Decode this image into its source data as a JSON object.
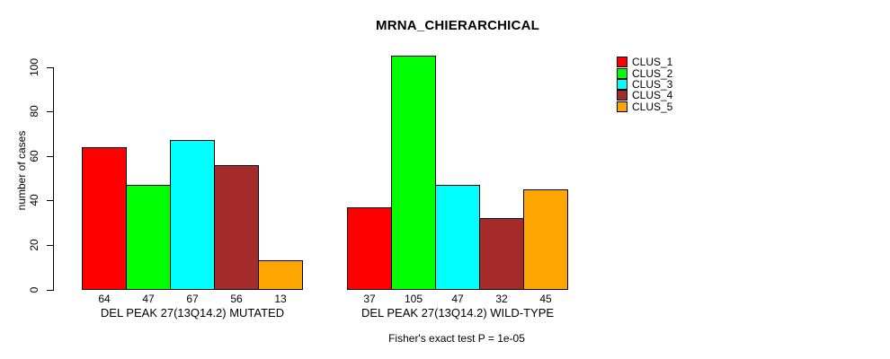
{
  "chart_data": {
    "type": "bar",
    "title": "MRNA_CHIERARCHICAL",
    "xlabel": "",
    "ylabel": "number of cases",
    "ylim": [
      0,
      100
    ],
    "yticks": [
      0,
      20,
      40,
      60,
      80,
      100
    ],
    "grid": false,
    "legend_position": "top-right",
    "bar_value_labels": true,
    "categories": [
      "DEL PEAK 27(13Q14.2) MUTATED",
      "DEL PEAK 27(13Q14.2) WILD-TYPE"
    ],
    "series": [
      {
        "name": "CLUS_1",
        "color": "#FF0000",
        "values": [
          64,
          37
        ]
      },
      {
        "name": "CLUS_2",
        "color": "#00FF00",
        "values": [
          47,
          105
        ]
      },
      {
        "name": "CLUS_3",
        "color": "#00FFFF",
        "values": [
          67,
          47
        ]
      },
      {
        "name": "CLUS_4",
        "color": "#A52A2A",
        "values": [
          56,
          32
        ]
      },
      {
        "name": "CLUS_5",
        "color": "#FFA500",
        "values": [
          13,
          45
        ]
      }
    ],
    "footnote": "Fisher's exact test P = 1e-05"
  }
}
